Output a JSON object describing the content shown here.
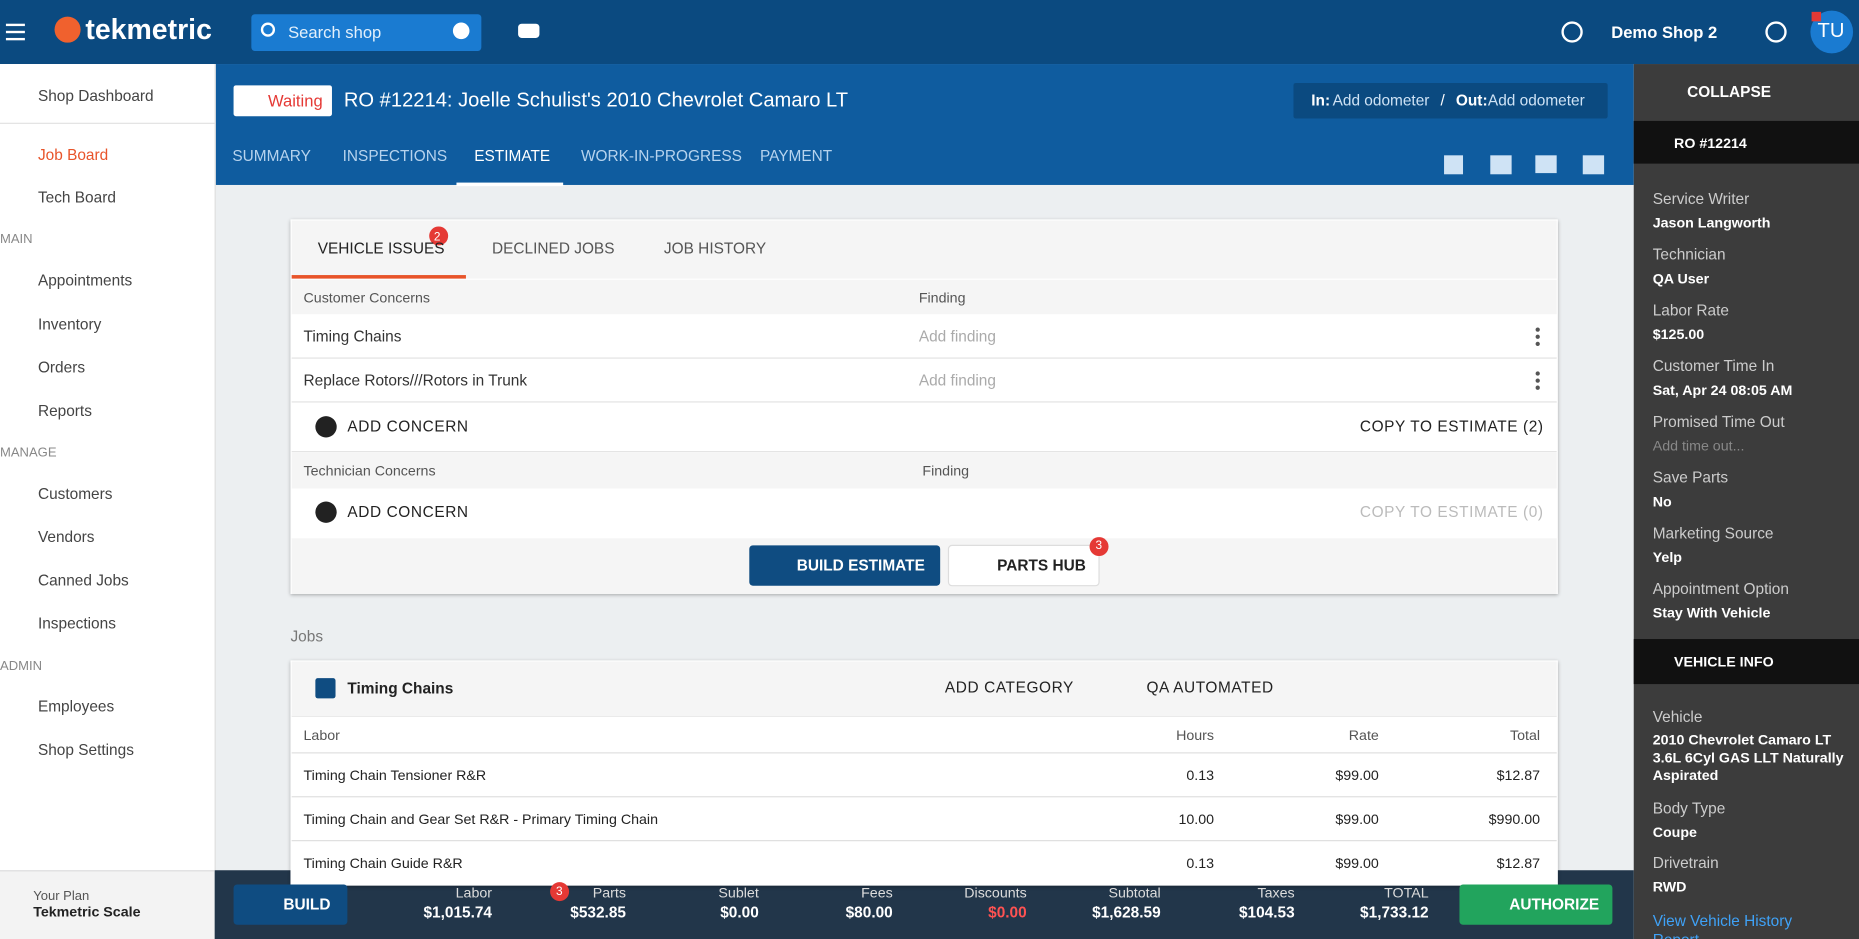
{
  "header": {
    "logo": "tekmetric",
    "search": "Search shop",
    "shop": "Demo Shop 2",
    "avatar": "TU"
  },
  "sidebar": {
    "nav": [
      "Shop Dashboard",
      "Job Board",
      "Tech Board",
      "MAIN",
      "Appointments",
      "Inventory",
      "Orders",
      "Reports",
      "MANAGE",
      "Customers",
      "Vendors",
      "Canned Jobs",
      "Inspections",
      "ADMIN",
      "Employees",
      "Shop Settings"
    ],
    "plan_label": "Your Plan",
    "plan": "Tekmetric Scale"
  },
  "ro": {
    "status": "Waiting",
    "title": "RO #12214: Joelle Schulist's 2010 Chevrolet Camaro LT",
    "odometer": {
      "in_label": "In:",
      "in_value": "Add odometer",
      "separator": "/",
      "out_label": "Out:",
      "out_value": "Add odometer"
    },
    "tabs": [
      "SUMMARY",
      "INSPECTIONS",
      "ESTIMATE",
      "WORK-IN-PROGRESS",
      "PAYMENT"
    ]
  },
  "issues": {
    "tabs": [
      "VEHICLE ISSUES",
      "DECLINED JOBS",
      "JOB HISTORY"
    ],
    "badge": 2,
    "customer": {
      "header": "Customer Concerns",
      "finding": "Finding",
      "rows": [
        [
          "Timing Chains",
          "Add finding"
        ],
        [
          "Replace Rotors///Rotors in Trunk",
          "Add finding"
        ]
      ],
      "add": "ADD CONCERN",
      "copy": "COPY TO ESTIMATE (2)"
    },
    "technician": {
      "header": "Technician Concerns",
      "finding": "Finding",
      "add": "ADD CONCERN",
      "copy": "COPY TO ESTIMATE (0)"
    },
    "build": "BUILD ESTIMATE",
    "parts_hub": "PARTS HUB",
    "parts_badge": 3
  },
  "jobs": {
    "label": "Jobs",
    "job": "Timing Chains",
    "add_category": "ADD CATEGORY",
    "tech": "QA AUTOMATED",
    "columns": [
      "Labor",
      "Hours",
      "Rate",
      "Total"
    ],
    "rows": [
      [
        "Timing Chain Tensioner R&R",
        "0.13",
        "$99.00",
        "$12.87"
      ],
      [
        "Timing Chain and Gear Set R&R - Primary Timing Chain",
        "10.00",
        "$99.00",
        "$990.00"
      ],
      [
        "Timing Chain Guide R&R",
        "0.13",
        "$99.00",
        "$12.87"
      ]
    ]
  },
  "footer": {
    "build": "BUILD",
    "totals": [
      {
        "label": "Labor",
        "value": "$1,015.74"
      },
      {
        "label": "Parts",
        "value": "$532.85"
      },
      {
        "label": "Sublet",
        "value": "$0.00"
      },
      {
        "label": "Fees",
        "value": "$80.00"
      },
      {
        "label": "Discounts",
        "value": "$0.00"
      },
      {
        "label": "Subtotal",
        "value": "$1,628.59"
      },
      {
        "label": "Taxes",
        "value": "$104.53"
      },
      {
        "label": "TOTAL",
        "value": "$1,733.12"
      }
    ],
    "parts_badge": 3,
    "authorize": "AUTHORIZE"
  },
  "panel": {
    "collapse": "COLLAPSE",
    "ro_title": "RO #12214",
    "ro_fields": [
      {
        "label": "Service Writer",
        "value": "Jason Langworth"
      },
      {
        "label": "Technician",
        "value": "QA User"
      },
      {
        "label": "Labor Rate",
        "value": "$125.00"
      },
      {
        "label": "Customer Time In",
        "value": "Sat, Apr 24 08:05 AM"
      },
      {
        "label": "Promised Time Out",
        "value": "Add time out..."
      },
      {
        "label": "Save Parts",
        "value": "No"
      },
      {
        "label": "Marketing Source",
        "value": "Yelp"
      },
      {
        "label": "Appointment Option",
        "value": "Stay With Vehicle"
      }
    ],
    "vehicle_title": "VEHICLE INFO",
    "vehicle_fields": [
      {
        "label": "Vehicle",
        "value": "2010 Chevrolet Camaro LT 3.6L 6Cyl GAS LLT Naturally Aspirated"
      },
      {
        "label": "Body Type",
        "value": "Coupe"
      },
      {
        "label": "Drivetrain",
        "value": "RWD"
      }
    ],
    "history_link": "View Vehicle History Report"
  }
}
